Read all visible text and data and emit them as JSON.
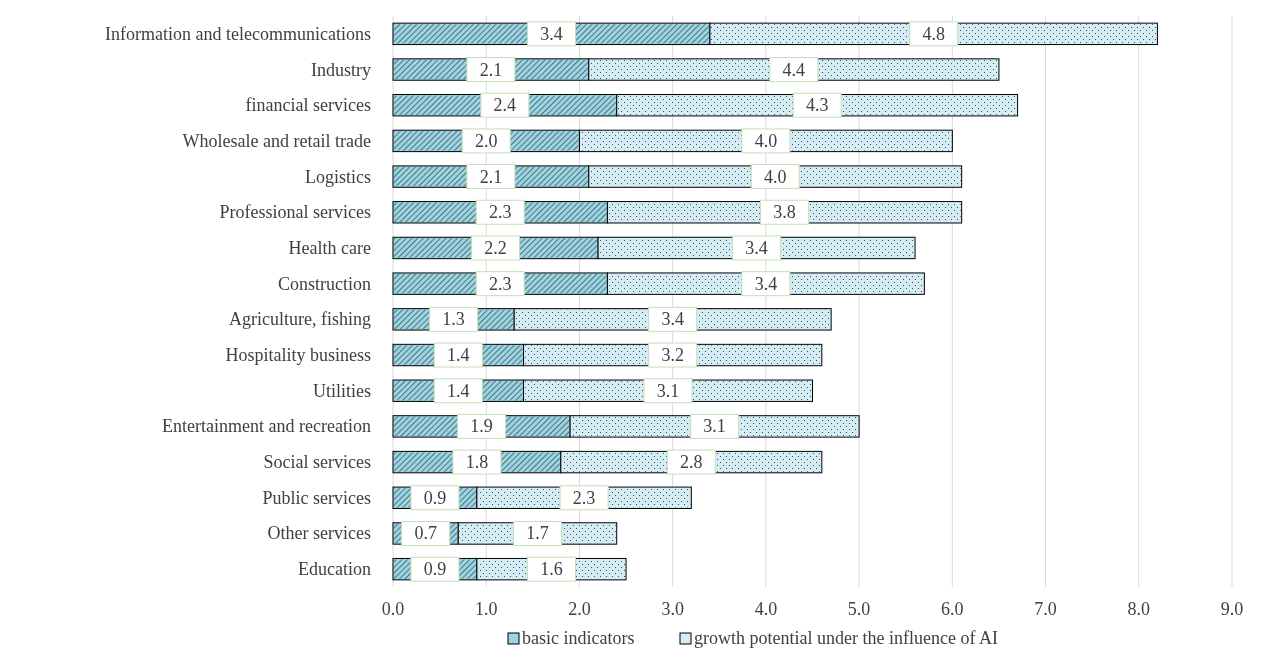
{
  "chart_data": {
    "type": "bar",
    "orientation": "horizontal",
    "stacked": true,
    "categories": [
      "Information and telecommunications",
      "Industry",
      "financial services",
      "Wholesale and retail trade",
      "Logistics",
      "Professional services",
      "Health care",
      "Construction",
      "Agriculture, fishing",
      "Hospitality business",
      "Utilities",
      "Entertainment and recreation",
      "Social services",
      "Public services",
      "Other services",
      "Education"
    ],
    "series": [
      {
        "name": "basic indicators",
        "color": "#9fd3df",
        "values": [
          3.4,
          2.1,
          2.4,
          2.0,
          2.1,
          2.3,
          2.2,
          2.3,
          1.3,
          1.4,
          1.4,
          1.9,
          1.8,
          0.9,
          0.7,
          0.9
        ],
        "value_labels": [
          "3.4",
          "2.1",
          "2.4",
          "2.0",
          "2.1",
          "2.3",
          "2.2",
          "2.3",
          "1.3",
          "1.4",
          "1.4",
          "1.9",
          "1.8",
          "0.9",
          "0.7",
          "0.9"
        ]
      },
      {
        "name": "growth potential under the influence of AI",
        "color": "#d6ecf5",
        "values": [
          4.8,
          4.4,
          4.3,
          4.0,
          4.0,
          3.8,
          3.4,
          3.4,
          3.4,
          3.2,
          3.1,
          3.1,
          2.8,
          2.3,
          1.7,
          1.6
        ],
        "value_labels": [
          "4.8",
          "4.4",
          "4.3",
          "4.0",
          "4.0",
          "3.8",
          "3.4",
          "3.4",
          "3.4",
          "3.2",
          "3.1",
          "3.1",
          "2.8",
          "2.3",
          "1.7",
          "1.6"
        ]
      }
    ],
    "xlim": [
      0,
      9
    ],
    "xticks": [
      {
        "value": 0,
        "label": "0.0"
      },
      {
        "value": 1,
        "label": "1.0"
      },
      {
        "value": 2,
        "label": "2.0"
      },
      {
        "value": 3,
        "label": "3.0"
      },
      {
        "value": 4,
        "label": "4.0"
      },
      {
        "value": 5,
        "label": "5.0"
      },
      {
        "value": 6,
        "label": "6.0"
      },
      {
        "value": 7,
        "label": "7.0"
      },
      {
        "value": 8,
        "label": "8.0"
      },
      {
        "value": 9,
        "label": "9.0"
      }
    ],
    "grid": "x",
    "legend": "bottom"
  }
}
